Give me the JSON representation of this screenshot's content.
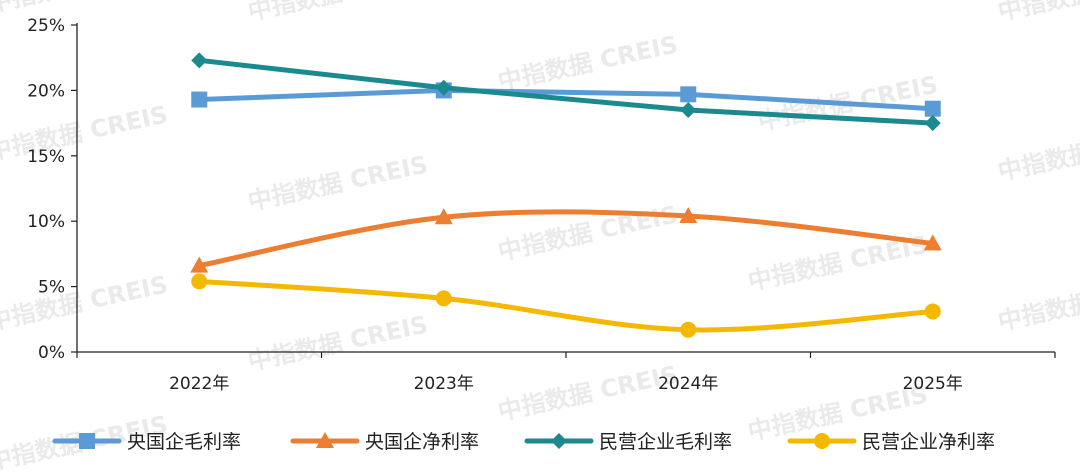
{
  "chart_data": {
    "type": "line",
    "categories": [
      "2022年",
      "2023年",
      "2024年",
      "2025年"
    ],
    "ylim": [
      0,
      25
    ],
    "yticks": [
      "0%",
      "5%",
      "10%",
      "15%",
      "20%",
      "25%"
    ],
    "legend_position": "bottom",
    "grid": false,
    "series": [
      {
        "name": "央国企毛利率",
        "values": [
          19.3,
          20.0,
          19.7,
          18.6
        ],
        "color": "#5b9bd5",
        "marker": "square",
        "smooth": false
      },
      {
        "name": "央国企净利率",
        "values": [
          6.6,
          10.3,
          10.4,
          8.3
        ],
        "color": "#ed7d31",
        "marker": "triangle",
        "smooth": true
      },
      {
        "name": "民营企业毛利率",
        "values": [
          22.3,
          20.2,
          18.5,
          17.5
        ],
        "color": "#1b8a8f",
        "marker": "diamond",
        "smooth": false
      },
      {
        "name": "民营企业净利率",
        "values": [
          5.4,
          4.1,
          1.7,
          3.1
        ],
        "color": "#f5b800",
        "marker": "circle",
        "smooth": true
      }
    ]
  },
  "watermark": "中指数据 CREIS"
}
